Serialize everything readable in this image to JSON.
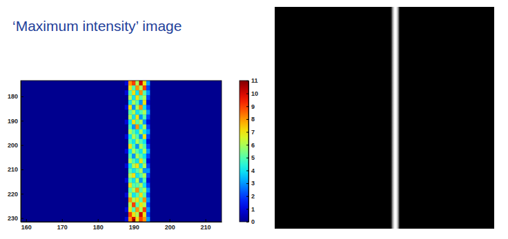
{
  "chart_data": {
    "type": "heatmap",
    "title": "‘Maximum intensity’ image",
    "x": [
      188,
      189,
      190,
      191,
      192,
      193,
      194
    ],
    "y": [
      174.5,
      176.5,
      178.5,
      180.5,
      182.5,
      184.5,
      186.5,
      188.5,
      190.5,
      192.5,
      194.5,
      196.5,
      198.5,
      200.5,
      202.5,
      204.5,
      206.5,
      208.5,
      210.5,
      212.5,
      214.5,
      216.5,
      218.5,
      220.5,
      222.5,
      224.5,
      226.5,
      228.5,
      230.5
    ],
    "values": [
      [
        1,
        8,
        9,
        6,
        10,
        7,
        3
      ],
      [
        0,
        7,
        5,
        8,
        6,
        9,
        2
      ],
      [
        1,
        5,
        7,
        4,
        8,
        5,
        3
      ],
      [
        0,
        6,
        4,
        7,
        5,
        6,
        2
      ],
      [
        0,
        4,
        6,
        5,
        3,
        7,
        1
      ],
      [
        1,
        7,
        3,
        6,
        8,
        4,
        2
      ],
      [
        0,
        5,
        6,
        4,
        5,
        6,
        3
      ],
      [
        0,
        6,
        4,
        7,
        3,
        5,
        2
      ],
      [
        1,
        4,
        7,
        5,
        6,
        3,
        1
      ],
      [
        0,
        5,
        3,
        8,
        4,
        6,
        2
      ],
      [
        0,
        6,
        5,
        4,
        6,
        4,
        3
      ],
      [
        1,
        4,
        6,
        5,
        3,
        7,
        2
      ],
      [
        0,
        5,
        4,
        6,
        5,
        4,
        1
      ],
      [
        0,
        7,
        5,
        3,
        6,
        5,
        2
      ],
      [
        1,
        4,
        6,
        5,
        4,
        6,
        3
      ],
      [
        0,
        5,
        3,
        6,
        5,
        4,
        2
      ],
      [
        0,
        6,
        5,
        4,
        7,
        5,
        1
      ],
      [
        1,
        4,
        6,
        7,
        4,
        6,
        2
      ],
      [
        0,
        5,
        4,
        5,
        6,
        3,
        3
      ],
      [
        0,
        6,
        7,
        4,
        5,
        6,
        2
      ],
      [
        1,
        5,
        4,
        6,
        3,
        5,
        1
      ],
      [
        0,
        7,
        5,
        5,
        6,
        4,
        2
      ],
      [
        0,
        5,
        6,
        8,
        5,
        6,
        3
      ],
      [
        1,
        6,
        4,
        5,
        7,
        5,
        2
      ],
      [
        0,
        8,
        6,
        7,
        5,
        8,
        3
      ],
      [
        0,
        6,
        9,
        5,
        7,
        6,
        2
      ],
      [
        1,
        7,
        5,
        8,
        6,
        9,
        3
      ],
      [
        0,
        9,
        7,
        6,
        10,
        7,
        2
      ],
      [
        1,
        8,
        10,
        7,
        9,
        8,
        3
      ]
    ],
    "xlim": [
      158.5,
      214.5
    ],
    "ylim": [
      173.5,
      231.5
    ],
    "xticks": [
      160,
      170,
      180,
      190,
      200,
      210
    ],
    "yticks": [
      180,
      190,
      200,
      210,
      220,
      230
    ],
    "colorbar": {
      "lim": [
        0,
        11
      ],
      "ticks": [
        0,
        1,
        2,
        3,
        4,
        5,
        6,
        7,
        8,
        9,
        10,
        11
      ]
    }
  }
}
